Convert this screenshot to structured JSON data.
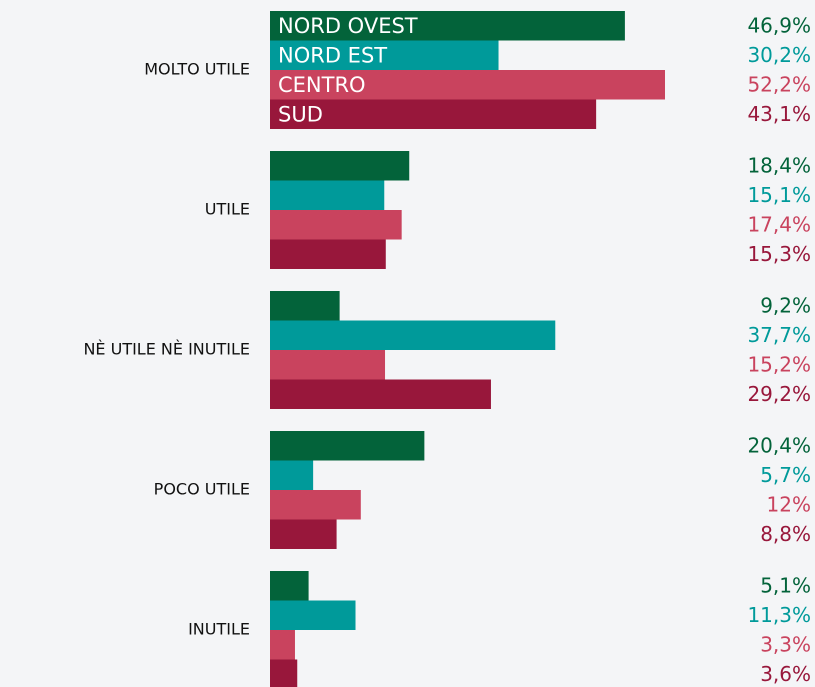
{
  "chart_data": {
    "type": "bar",
    "orientation": "horizontal",
    "categories": [
      "MOLTO UTILE",
      "UTILE",
      "NÈ UTILE NÈ INUTILE",
      "POCO UTILE",
      "INUTILE"
    ],
    "series": [
      {
        "name": "NORD OVEST",
        "color": "#03633a",
        "values": [
          46.9,
          18.4,
          9.2,
          20.4,
          5.1
        ],
        "value_labels": [
          "46,9%",
          "18,4%",
          "9,2%",
          "20,4%",
          "5,1%"
        ]
      },
      {
        "name": "NORD EST",
        "color": "#009a9a",
        "values": [
          30.2,
          15.1,
          37.7,
          5.7,
          11.3
        ],
        "value_labels": [
          "30,2%",
          "15,1%",
          "37,7%",
          "5,7%",
          "11,3%"
        ]
      },
      {
        "name": "CENTRO",
        "color": "#c9435e",
        "values": [
          52.2,
          17.4,
          15.2,
          12,
          3.3
        ],
        "value_labels": [
          "52,2%",
          "17,4%",
          "15,2%",
          "12%",
          "3,3%"
        ]
      },
      {
        "name": "SUD",
        "color": "#98173b",
        "values": [
          43.1,
          15.3,
          29.2,
          8.8,
          3.6
        ],
        "value_labels": [
          "43,1%",
          "15,3%",
          "29,2%",
          "8,8%",
          "3,6%"
        ]
      }
    ]
  }
}
